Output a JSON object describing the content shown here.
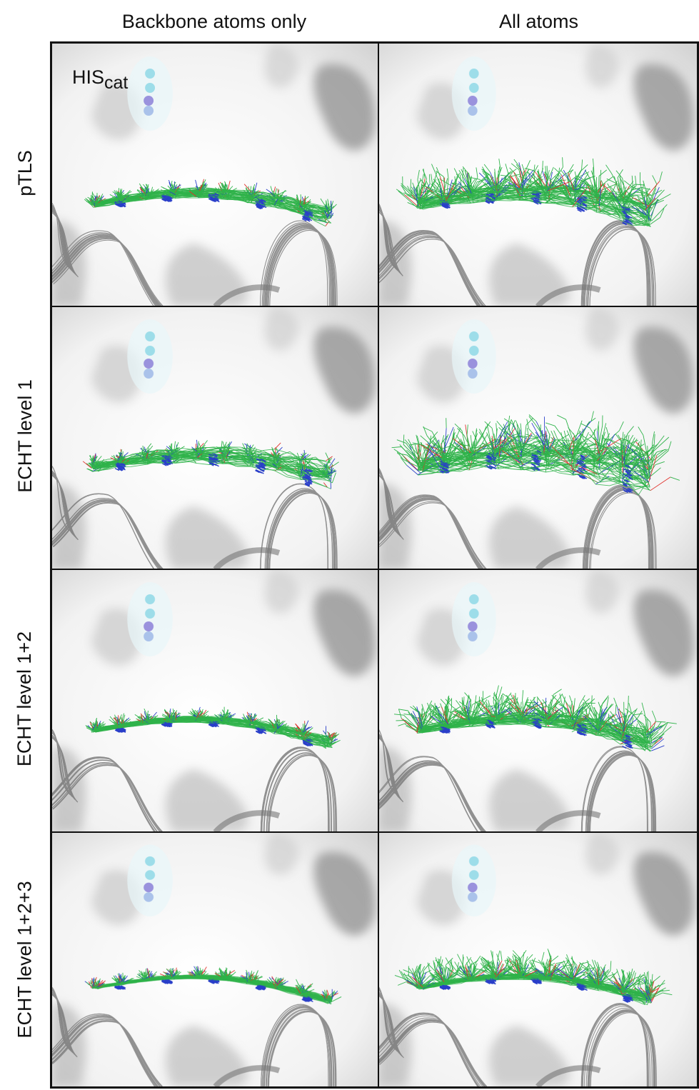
{
  "columns": [
    {
      "label": "Backbone atoms only"
    },
    {
      "label": "All atoms"
    }
  ],
  "rows": [
    {
      "label": "pTLS",
      "spread": 0.35
    },
    {
      "label": "ECHT level 1",
      "spread": 0.55
    },
    {
      "label": "ECHT level 1+2",
      "spread": 0.25
    },
    {
      "label": "ECHT level 1+2+3",
      "spread": 0.15
    }
  ],
  "annotation": {
    "main": "HIS",
    "sub": "cat"
  },
  "colors": {
    "surface_light": "#f2f2f2",
    "surface_shadow": "#9a9a9a",
    "ribbon": "#6f6f6f",
    "carbon": "#2fb34a",
    "nitrogen": "#2a3fc9",
    "oxygen": "#e0302a",
    "his_sphere_cyan": "#8fd8e6",
    "his_sphere_purple": "#8c80d8",
    "border": "#111111"
  }
}
